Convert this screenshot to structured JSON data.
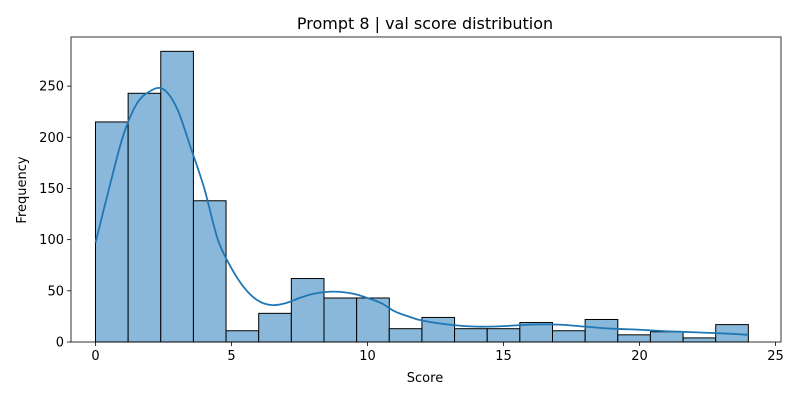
{
  "chart_data": {
    "type": "bar",
    "subtype": "histogram",
    "title": "Prompt 8 | val score distribution",
    "xlabel": "Score",
    "ylabel": "Frequency",
    "xlim": [
      -0.9,
      25.2
    ],
    "ylim": [
      0,
      298
    ],
    "xticks": [
      0,
      5,
      10,
      15,
      20,
      25
    ],
    "yticks": [
      0,
      50,
      100,
      150,
      200,
      250
    ],
    "grid": false,
    "bar_color": "#8ab8db",
    "bar_edge_color": "#000000",
    "kde_color": "#1f77b4",
    "bins": [
      {
        "x0": 0.0,
        "x1": 1.2,
        "value": 215
      },
      {
        "x0": 1.2,
        "x1": 2.4,
        "value": 243
      },
      {
        "x0": 2.4,
        "x1": 3.6,
        "value": 284
      },
      {
        "x0": 3.6,
        "x1": 4.8,
        "value": 138
      },
      {
        "x0": 4.8,
        "x1": 6.0,
        "value": 11
      },
      {
        "x0": 6.0,
        "x1": 7.2,
        "value": 28
      },
      {
        "x0": 7.2,
        "x1": 8.4,
        "value": 62
      },
      {
        "x0": 8.4,
        "x1": 9.6,
        "value": 43
      },
      {
        "x0": 9.6,
        "x1": 10.8,
        "value": 43
      },
      {
        "x0": 10.8,
        "x1": 12.0,
        "value": 13
      },
      {
        "x0": 12.0,
        "x1": 13.2,
        "value": 24
      },
      {
        "x0": 13.2,
        "x1": 14.4,
        "value": 13
      },
      {
        "x0": 14.4,
        "x1": 15.6,
        "value": 13
      },
      {
        "x0": 15.6,
        "x1": 16.8,
        "value": 19
      },
      {
        "x0": 16.8,
        "x1": 18.0,
        "value": 11
      },
      {
        "x0": 18.0,
        "x1": 19.2,
        "value": 22
      },
      {
        "x0": 19.2,
        "x1": 20.4,
        "value": 7
      },
      {
        "x0": 20.4,
        "x1": 21.6,
        "value": 10
      },
      {
        "x0": 21.6,
        "x1": 22.8,
        "value": 4
      },
      {
        "x0": 22.8,
        "x1": 24.0,
        "value": 17
      }
    ],
    "kde": {
      "x": [
        0,
        0.5,
        1,
        1.5,
        2,
        2.5,
        3,
        3.5,
        4,
        4.5,
        5,
        5.5,
        6,
        6.5,
        7,
        7.5,
        8,
        8.5,
        9,
        9.5,
        10,
        10.5,
        11,
        11.5,
        12,
        13,
        14,
        15,
        16,
        17,
        18,
        19,
        20,
        21,
        22,
        23,
        24
      ],
      "y": [
        97,
        150,
        200,
        232,
        245,
        247,
        228,
        190,
        150,
        100,
        72,
        52,
        40,
        36,
        38,
        43,
        47,
        49,
        49,
        47,
        43,
        38,
        30,
        25,
        21,
        17,
        15,
        15.5,
        17,
        17,
        15,
        13,
        12,
        10.5,
        9.5,
        8.5,
        7
      ]
    }
  }
}
